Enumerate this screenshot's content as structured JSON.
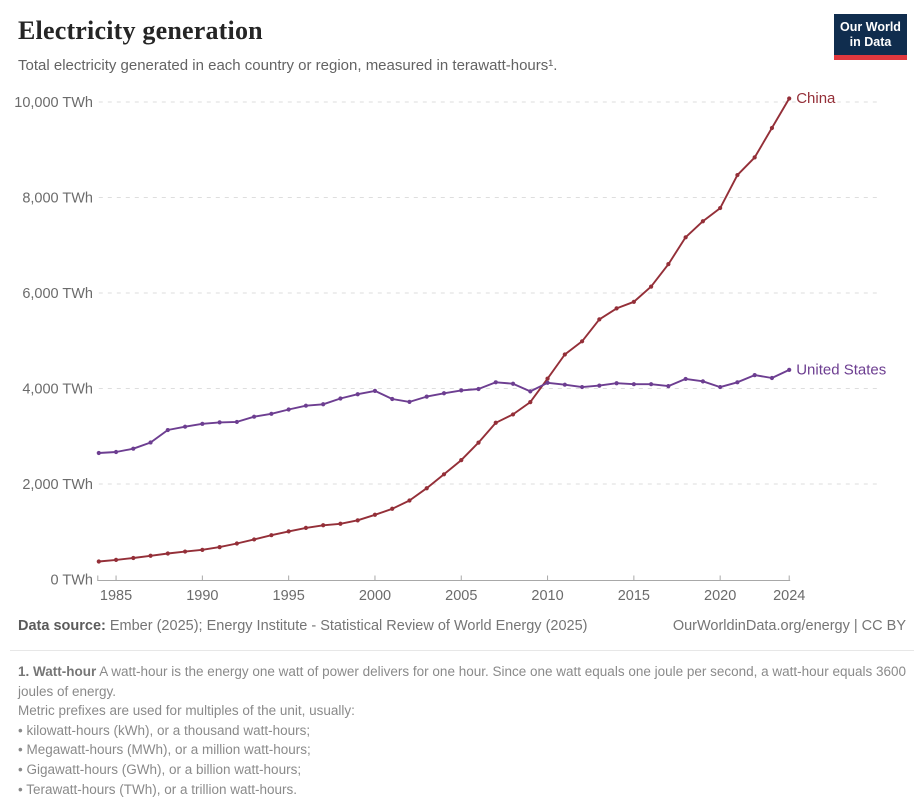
{
  "header": {
    "title": "Electricity generation",
    "subtitle": "Total electricity generated in each country or region, measured in terawatt-hours¹.",
    "logo": {
      "line1": "Our World",
      "line2": "in Data"
    }
  },
  "chart_data": {
    "type": "line",
    "title": "Electricity generation",
    "unit": "TWh",
    "xlim": [
      1984,
      2024
    ],
    "ylim": [
      0,
      10000
    ],
    "grid": "dashed-horizontal",
    "legend_position": "line-end-labels",
    "xticks": [
      1985,
      1990,
      1995,
      2000,
      2005,
      2010,
      2015,
      2020,
      2024
    ],
    "yticks": [
      0,
      2000,
      4000,
      6000,
      8000,
      10000
    ],
    "ytick_labels": [
      "0 TWh",
      "2,000 TWh",
      "4,000 TWh",
      "6,000 TWh",
      "8,000 TWh",
      "10,000 TWh"
    ],
    "x": [
      1984,
      1985,
      1986,
      1987,
      1988,
      1989,
      1990,
      1991,
      1992,
      1993,
      1994,
      1995,
      1996,
      1997,
      1998,
      1999,
      2000,
      2001,
      2002,
      2003,
      2004,
      2005,
      2006,
      2007,
      2008,
      2009,
      2010,
      2011,
      2012,
      2013,
      2014,
      2015,
      2016,
      2017,
      2018,
      2019,
      2020,
      2021,
      2022,
      2023,
      2024
    ],
    "series": [
      {
        "name": "China",
        "color": "#942f38",
        "values": [
          377,
          411,
          450,
          497,
          545,
          585,
          621,
          678,
          754,
          839,
          928,
          1008,
          1081,
          1136,
          1167,
          1239,
          1356,
          1481,
          1654,
          1911,
          2203,
          2500,
          2866,
          3282,
          3457,
          3715,
          4207,
          4713,
          4988,
          5447,
          5678,
          5815,
          6133,
          6604,
          7166,
          7503,
          7779,
          8470,
          8840,
          9456,
          10073
        ]
      },
      {
        "name": "United States",
        "color": "#6d3e91",
        "values": [
          2650,
          2670,
          2740,
          2870,
          3130,
          3200,
          3260,
          3290,
          3300,
          3410,
          3470,
          3560,
          3640,
          3670,
          3790,
          3880,
          3950,
          3780,
          3720,
          3830,
          3900,
          3960,
          3990,
          4130,
          4100,
          3940,
          4120,
          4080,
          4030,
          4060,
          4110,
          4090,
          4090,
          4050,
          4200,
          4150,
          4030,
          4130,
          4280,
          4220,
          4390
        ]
      }
    ]
  },
  "footer": {
    "datasource_label": "Data source:",
    "datasource_text": " Ember (2025); Energy Institute - Statistical Review of World Energy (2025)",
    "link_text": "OurWorldinData.org/energy | CC BY"
  },
  "footnote": {
    "lead": "1. Watt-hour",
    "text": " A watt-hour is the energy one watt of power delivers for one hour. Since one watt equals one joule per second, a watt-hour equals 3600 joules of energy.",
    "metric_line": "Metric prefixes are used for multiples of the unit, usually:",
    "bullets": [
      "• kilowatt-hours (kWh), or a thousand watt-hours;",
      "• Megawatt-hours (MWh), or a million watt-hours;",
      "• Gigawatt-hours (GWh), or a billion watt-hours;",
      "• Terawatt-hours (TWh), or a trillion watt-hours."
    ]
  },
  "colors": {
    "china": "#942f38",
    "united_states": "#6d3e91",
    "grid": "#dedede",
    "axis": "#a8a8a8",
    "tick_text": "#6b6b6b",
    "logo_bg": "#102d4e",
    "logo_accent": "#e0383e"
  }
}
